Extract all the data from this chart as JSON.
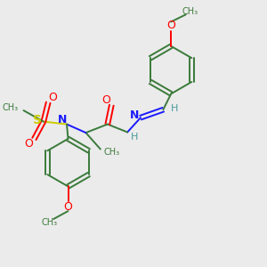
{
  "bg_color": "#ebebeb",
  "atom_colors": {
    "C": "#3a7a3a",
    "N": "#1a1aff",
    "O": "#ff0000",
    "S": "#cccc00",
    "H": "#4a9a9a"
  },
  "bond_color": "#3a7a3a",
  "figsize": [
    3.0,
    3.0
  ],
  "dpi": 100,
  "xlim": [
    0,
    10
  ],
  "ylim": [
    0,
    10
  ]
}
